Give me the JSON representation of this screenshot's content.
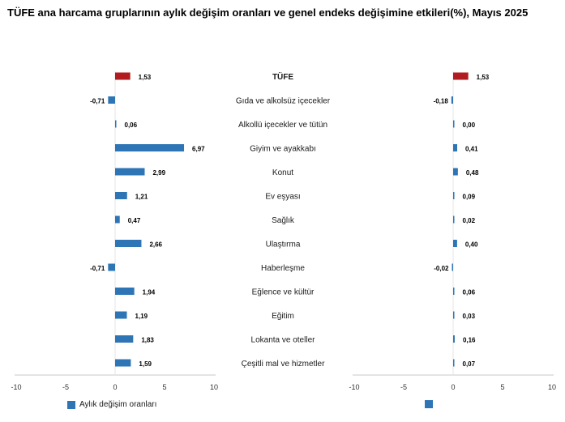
{
  "title": "TÜFE ana harcama gruplarının aylık değişim oranları ve genel endeks değişimine etkileri(%), Mayıs 2025",
  "chart_data": {
    "type": "bar",
    "orientation": "horizontal",
    "categories": [
      "TÜFE",
      "Gıda ve alkolsüz içecekler",
      "Alkollü içecekler ve tütün",
      "Giyim ve ayakkabı",
      "Konut",
      "Ev eşyası",
      "Sağlık",
      "Ulaştırma",
      "Haberleşme",
      "Eğlence ve kültür",
      "Eğitim",
      "Lokanta ve oteller",
      "Çeşitli mal ve hizmetler"
    ],
    "series": [
      {
        "name": "Aylık değişim oranları",
        "values": [
          1.53,
          -0.71,
          0.06,
          6.97,
          2.99,
          1.21,
          0.47,
          2.66,
          -0.71,
          1.94,
          1.19,
          1.83,
          1.59
        ],
        "labels": [
          "1,53",
          "-0,71",
          "0,06",
          "6,97",
          "2,99",
          "1,21",
          "0,47",
          "2,66",
          "-0,71",
          "1,94",
          "1,19",
          "1,83",
          "1,59"
        ]
      },
      {
        "name": "",
        "values": [
          1.53,
          -0.18,
          0.0,
          0.41,
          0.48,
          0.09,
          0.02,
          0.4,
          -0.02,
          0.06,
          0.03,
          0.16,
          0.07
        ],
        "labels": [
          "1,53",
          "-0,18",
          "0,00",
          "0,41",
          "0,48",
          "0,09",
          "0,02",
          "0,40",
          "-0,02",
          "0,06",
          "0,03",
          "0,16",
          "0,07"
        ]
      }
    ],
    "xlim": [
      -10,
      10
    ],
    "ticks": [
      -10,
      -5,
      0,
      5,
      10
    ],
    "tick_labels": [
      "-10",
      "-5",
      "0",
      "5",
      "10"
    ],
    "highlight_category": "TÜFE",
    "colors": {
      "bar": "#2e75b6",
      "highlight": "#b01c20"
    },
    "legend": "bottom-left",
    "grid": false
  }
}
